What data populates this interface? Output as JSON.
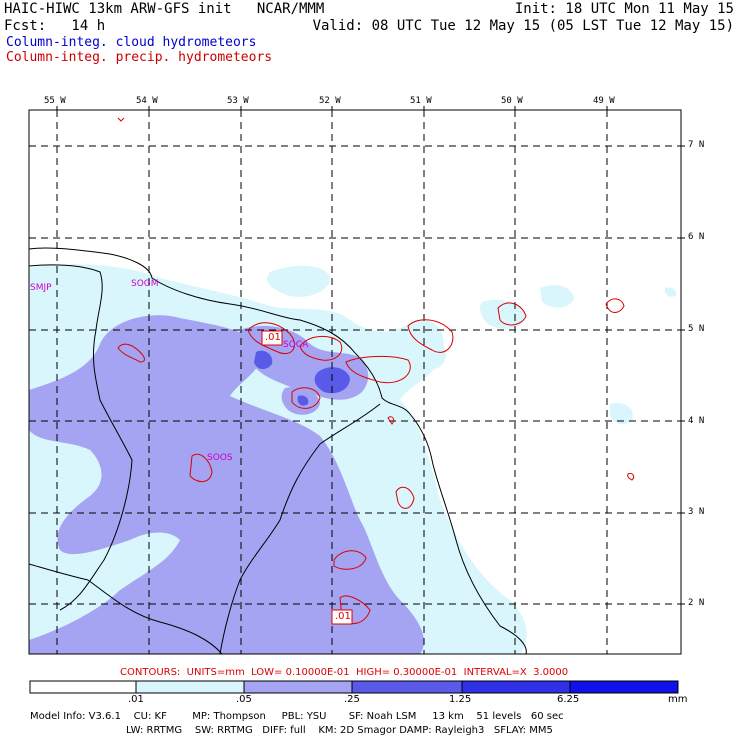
{
  "header": {
    "title_left": "HAIC-HIWC 13km ARW-GFS init   NCAR/MMM",
    "init": "Init: 18 UTC Mon 11 May 15",
    "fcst": "Fcst:   14 h",
    "valid": "Valid: 08 UTC Tue 12 May 15 (05 LST Tue 12 May 15)",
    "field_cloud": "Column-integ. cloud hydrometeors",
    "field_precip": "Column-integ. precip. hydrometeors"
  },
  "colors": {
    "cloud_text": "#0000cc",
    "precip_text": "#cc0000",
    "contour": "#dd0000",
    "station": "#cc00cc",
    "shade_1": "#d8f6fc",
    "shade_2": "#a4a4f2",
    "shade_3": "#5a5ae8",
    "shade_4": "#3030e4",
    "shade_5": "#1010e8"
  },
  "map": {
    "lon_labels": [
      "55 W",
      "54 W",
      "53 W",
      "52 W",
      "51 W",
      "50 W",
      "49 W"
    ],
    "lat_labels": [
      "7 N",
      "6 N",
      "5 N",
      "4 N",
      "3 N",
      "2 N"
    ],
    "stations": [
      "SMJP",
      "SOGM",
      "SOCA",
      "SOOS"
    ],
    "contour_labels": [
      ".01",
      ".01"
    ]
  },
  "contour_info": "CONTOURS:  UNITS=mm  LOW= 0.10000E-01  HIGH= 0.30000E-01  INTERVAL=X  3.0000",
  "colorbar": {
    "ticks": [
      ".01",
      ".05",
      ".25",
      "1.25",
      "6.25"
    ],
    "units": "mm"
  },
  "model_info": {
    "line1": "Model Info: V3.6.1    CU: KF        MP: Thompson     PBL: YSU       SF: Noah LSM     13 km    51 levels   60 sec",
    "line2": "LW: RRTMG    SW: RRTMG   DIFF: full    KM: 2D Smagor DAMP: Rayleigh3   SFLAY: MM5"
  }
}
